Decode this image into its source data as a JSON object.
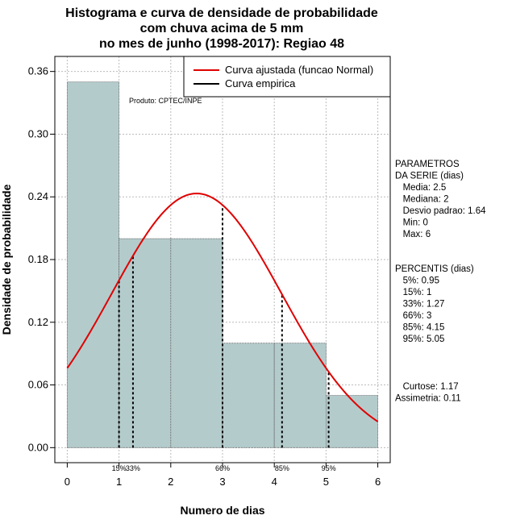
{
  "chart_data": {
    "type": "bar",
    "title_lines": [
      "Histograma e curva de densidade de probabilidade",
      "com chuva acima de 5 mm",
      "no mes de junho (1998-2017): Regiao 48"
    ],
    "xlabel": "Numero de dias",
    "ylabel": "Densidade de probabilidade",
    "xlim": [
      -0.24,
      6.24
    ],
    "ylim": [
      -0.0144,
      0.3744
    ],
    "x_ticks": [
      0,
      1,
      2,
      3,
      4,
      5,
      6
    ],
    "y_ticks": [
      0.0,
      0.06,
      0.12,
      0.18,
      0.24,
      0.3,
      0.36
    ],
    "y_tick_labels": [
      "0.00",
      "0.06",
      "0.12",
      "0.18",
      "0.24",
      "0.30",
      "0.36"
    ],
    "grid": true,
    "bar_color": "#b4cbcc",
    "bins": [
      {
        "from": 0,
        "to": 1,
        "density": 0.35
      },
      {
        "from": 1,
        "to": 2,
        "density": 0.2
      },
      {
        "from": 2,
        "to": 3,
        "density": 0.2
      },
      {
        "from": 3,
        "to": 4,
        "density": 0.1
      },
      {
        "from": 4,
        "to": 5,
        "density": 0.1
      },
      {
        "from": 5,
        "to": 6,
        "density": 0.05
      }
    ],
    "fitted_curve": {
      "name": "Curva ajustada (funcao Normal)",
      "mean": 2.5,
      "sd": 1.64,
      "color": "#e00000"
    },
    "empirical_curve": {
      "name": "Curva empirica",
      "color": "#000000"
    },
    "legend_position": "top-right",
    "percentile_markers": [
      {
        "label": "15%",
        "x": 1.0
      },
      {
        "label": "33%",
        "x": 1.27
      },
      {
        "label": "66%",
        "x": 3.0
      },
      {
        "label": "85%",
        "x": 4.15
      },
      {
        "label": "95%",
        "x": 5.05
      }
    ],
    "credit": "Produto: CPTEC/INPE"
  },
  "side_panel": {
    "params_lines": [
      "PARAMETROS",
      "DA SERIE (dias)",
      "   Media: 2.5",
      "   Mediana: 2",
      "   Desvio padrao: 1.64",
      "   Min: 0",
      "   Max: 6"
    ],
    "percentis_lines": [
      "PERCENTIS (dias)",
      "   5%: 0.95",
      "   15%: 1",
      "   33%: 1.27",
      "   66%: 3",
      "   85%: 4.15",
      "   95%: 5.05"
    ],
    "shape_lines": [
      "   Curtose: 1.17",
      "Assimetria: 0.11"
    ]
  }
}
